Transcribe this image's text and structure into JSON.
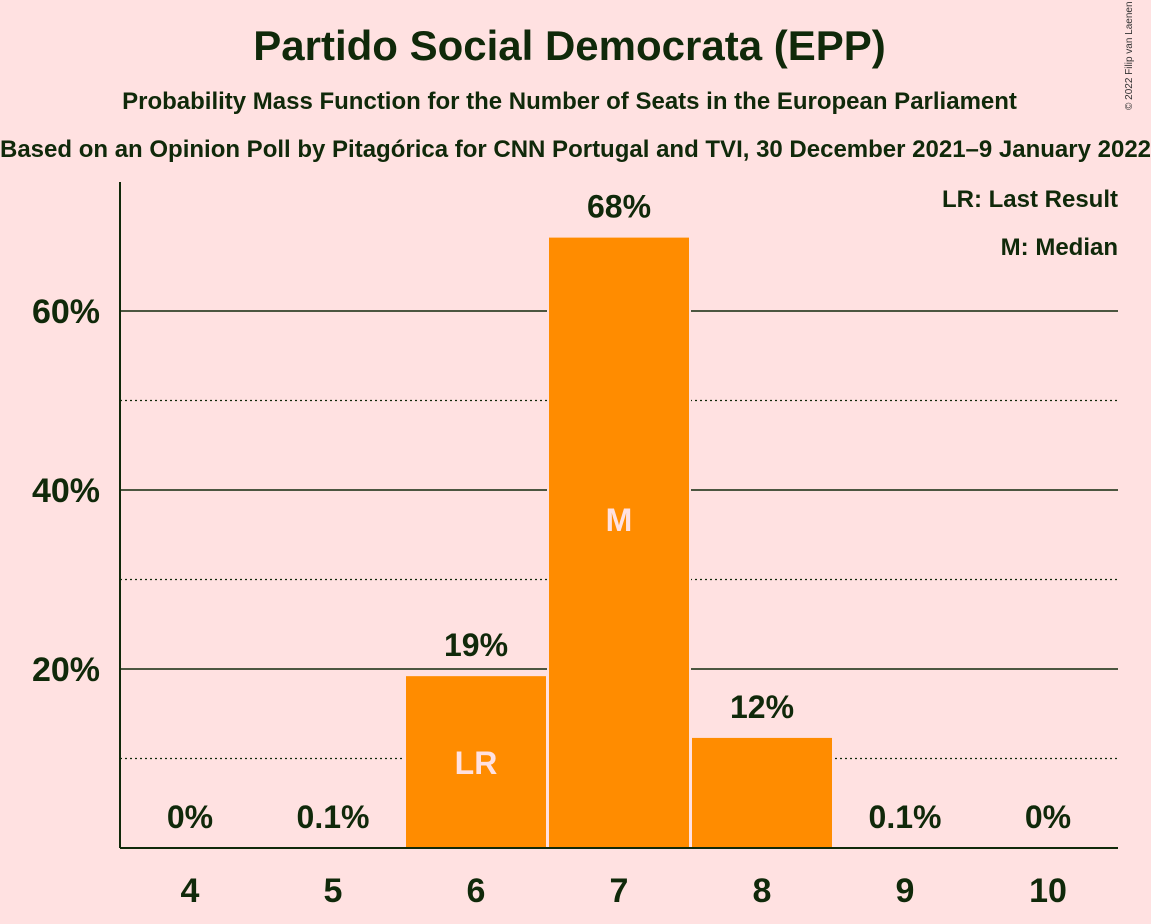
{
  "title": "Partido Social Democrata (EPP)",
  "subtitle": "Probability Mass Function for the Number of Seats in the European Parliament",
  "source_line": "Based on an Opinion Poll by Pitagórica for CNN Portugal and TVI, 30 December 2021–9 January 2022",
  "copyright": "© 2022 Filip van Laenen",
  "legend": {
    "last_result": "LR: Last Result",
    "median": "M: Median"
  },
  "colors": {
    "background": "#FFE1E1",
    "bar": "#FF8C00",
    "text": "#10290A"
  },
  "chart_data": {
    "type": "bar",
    "title": "Partido Social Democrata (EPP)",
    "categories": [
      "4",
      "5",
      "6",
      "7",
      "8",
      "9",
      "10"
    ],
    "values": [
      0,
      0.1,
      19.2,
      68.2,
      12.3,
      0.1,
      0
    ],
    "value_labels": [
      "0%",
      "0.1%",
      "19%",
      "68%",
      "12%",
      "0.1%",
      "0%"
    ],
    "bar_marks": [
      "",
      "",
      "LR",
      "M",
      "",
      "",
      ""
    ],
    "ylim": [
      0,
      74
    ],
    "yticks": [
      20,
      40,
      60
    ],
    "ytick_labels": [
      "20%",
      "40%",
      "60%"
    ],
    "minor_gridlines": [
      10,
      30,
      50
    ],
    "grid": true,
    "legend_position": "top-right"
  }
}
